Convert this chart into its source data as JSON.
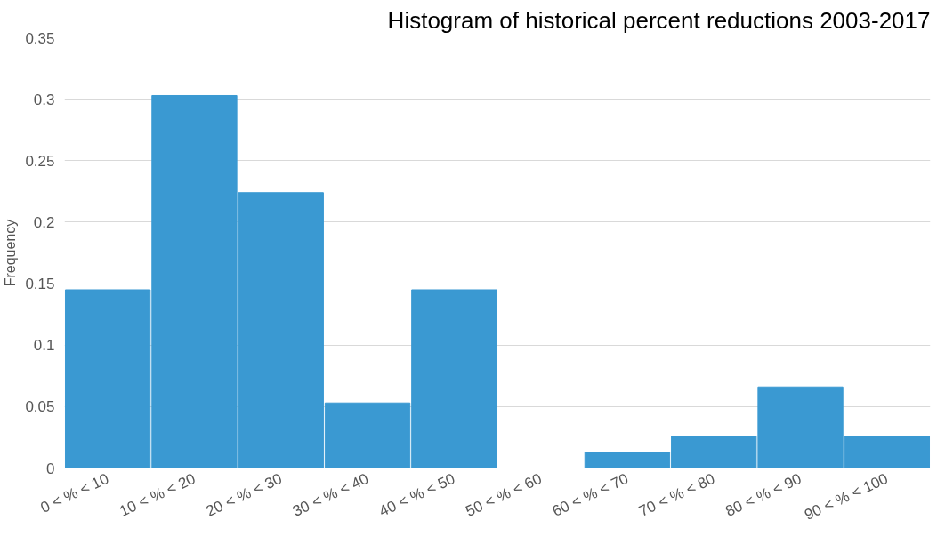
{
  "chart_data": {
    "type": "bar",
    "title": "Histogram of historical percent reductions 2003-2017",
    "ylabel": "Frequency",
    "categories": [
      "0 < % < 10",
      "10 < % < 20",
      "20 < % < 30",
      "30 < % < 40",
      "40 < % < 50",
      "50 < % < 60",
      "60 < % < 70",
      "70 < % < 80",
      "80 < % < 90",
      "90 < % < 100"
    ],
    "values": [
      0.145,
      0.303,
      0.224,
      0.053,
      0.145,
      0,
      0.013,
      0.026,
      0.066,
      0.026
    ],
    "color": "#3a99d2",
    "ylim": [
      0,
      0.35
    ],
    "yticks": [
      0,
      0.05,
      0.1,
      0.15,
      0.2,
      0.25,
      0.3,
      0.35
    ],
    "grid": "y"
  }
}
